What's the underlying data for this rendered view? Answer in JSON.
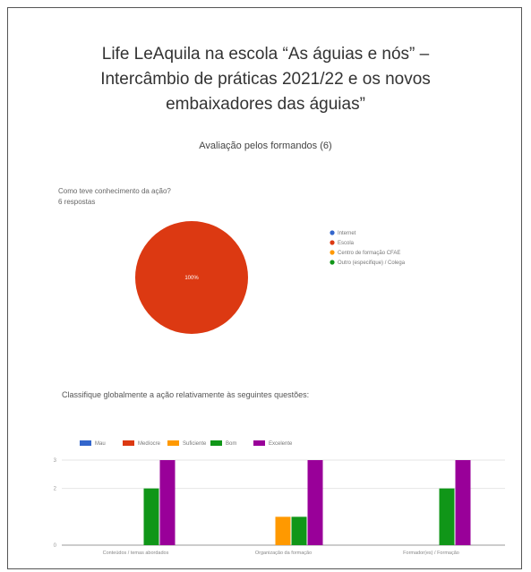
{
  "header": {
    "title_lines": [
      "Life LeAquila na escola “As águias e nós” –",
      "Intercâmbio de práticas 2021/22 e os novos",
      "embaixadores das águias”"
    ],
    "subtitle": "Avaliação pelos formandos (6)"
  },
  "colors": {
    "blue": "#3366cc",
    "red": "#dc3912",
    "orange": "#ff9900",
    "green": "#109618",
    "purple": "#990099"
  },
  "chart_data": [
    {
      "type": "pie",
      "title": "Como teve conhecimento da ação?",
      "subtitle": "6 respostas",
      "slices": [
        {
          "label": "Internet",
          "value": 0,
          "color": "#3366cc"
        },
        {
          "label": "Escola",
          "value": 100,
          "color": "#dc3912"
        },
        {
          "label": "Centro de formação CFAE",
          "value": 0,
          "color": "#ff9900"
        },
        {
          "label": "Outro (especifique) / Colega",
          "value": 0,
          "color": "#109618"
        }
      ],
      "slice_label": "100%",
      "legend_position": "right"
    },
    {
      "type": "bar",
      "title": "Classifique globalmente a ação relativamente às seguintes questões:",
      "categories": [
        "Conteúdos / temas abordados",
        "Organização da formação",
        "Formador(es) / Formação"
      ],
      "series": [
        {
          "name": "Mau",
          "color": "#3366cc",
          "values": [
            0,
            0,
            0
          ]
        },
        {
          "name": "Medíocre",
          "color": "#dc3912",
          "values": [
            0,
            0,
            0
          ]
        },
        {
          "name": "Suficiente",
          "color": "#ff9900",
          "values": [
            0,
            1,
            0
          ]
        },
        {
          "name": "Bom",
          "color": "#109618",
          "values": [
            2,
            1,
            2
          ]
        },
        {
          "name": "Excelente",
          "color": "#990099",
          "values": [
            3,
            3,
            3
          ]
        }
      ],
      "ylim": [
        0,
        3
      ],
      "yticks": [
        "0",
        "2",
        "3"
      ],
      "legend_position": "top"
    }
  ]
}
